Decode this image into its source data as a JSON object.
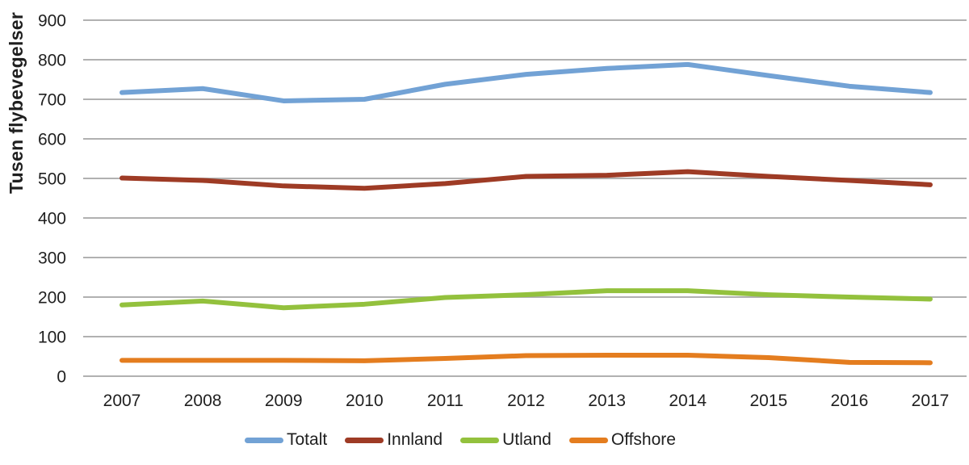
{
  "chart_data": {
    "type": "line",
    "ylabel": "Tusen flybevegelser",
    "categories": [
      "2007",
      "2008",
      "2009",
      "2010",
      "2011",
      "2012",
      "2013",
      "2014",
      "2015",
      "2016",
      "2017"
    ],
    "series": [
      {
        "name": "Totalt",
        "color": "#72A2D5",
        "values": [
          717,
          727,
          696,
          700,
          738,
          763,
          778,
          788,
          760,
          733,
          717
        ]
      },
      {
        "name": "Innland",
        "color": "#9E3B25",
        "values": [
          501,
          495,
          481,
          475,
          487,
          505,
          508,
          517,
          505,
          495,
          484
        ]
      },
      {
        "name": "Utland",
        "color": "#93C13D",
        "values": [
          180,
          190,
          173,
          182,
          199,
          206,
          216,
          216,
          206,
          200,
          195
        ]
      },
      {
        "name": "Offshore",
        "color": "#E47D1F",
        "values": [
          40,
          40,
          40,
          39,
          45,
          52,
          53,
          53,
          47,
          35,
          34
        ]
      }
    ],
    "yticks": [
      "0",
      "100",
      "200",
      "300",
      "400",
      "500",
      "600",
      "700",
      "800",
      "900"
    ],
    "ylim": [
      0,
      900
    ],
    "grid": true,
    "legend_position": "bottom"
  },
  "style": {
    "grid_color": "#A6A6A6",
    "text_color": "#1f1f1f",
    "background": "#FFFFFF"
  }
}
